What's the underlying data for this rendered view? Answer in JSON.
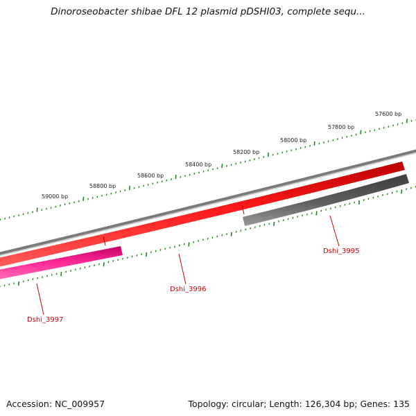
{
  "title": "Dinoroseobacter shibae DFL 12 plasmid pDSHI03, complete sequ...",
  "footer": {
    "accession": "Accession: NC_009957",
    "topology": "Topology: circular; Length: 126,304 bp; Genes: 135"
  },
  "colors": {
    "backbone": "#7a7a7a",
    "tick": "#1a8a1a",
    "gene_forward": "#ee0000",
    "gene_reverse_dark": "#555555",
    "gene_reverse_pink": "#ee1188",
    "label_red": "#cc0000"
  },
  "scale_labels": [
    "57600 bp",
    "57800 bp",
    "58000 bp",
    "58200 bp",
    "58400 bp",
    "58600 bp",
    "58800 bp",
    "59000 bp"
  ],
  "genes": [
    {
      "name": "Dshi_3995",
      "strand": "reverse",
      "color": "gray"
    },
    {
      "name": "Dshi_3996",
      "strand": "forward",
      "color": "red"
    },
    {
      "name": "Dshi_3997",
      "strand": "reverse",
      "color": "pink"
    }
  ]
}
